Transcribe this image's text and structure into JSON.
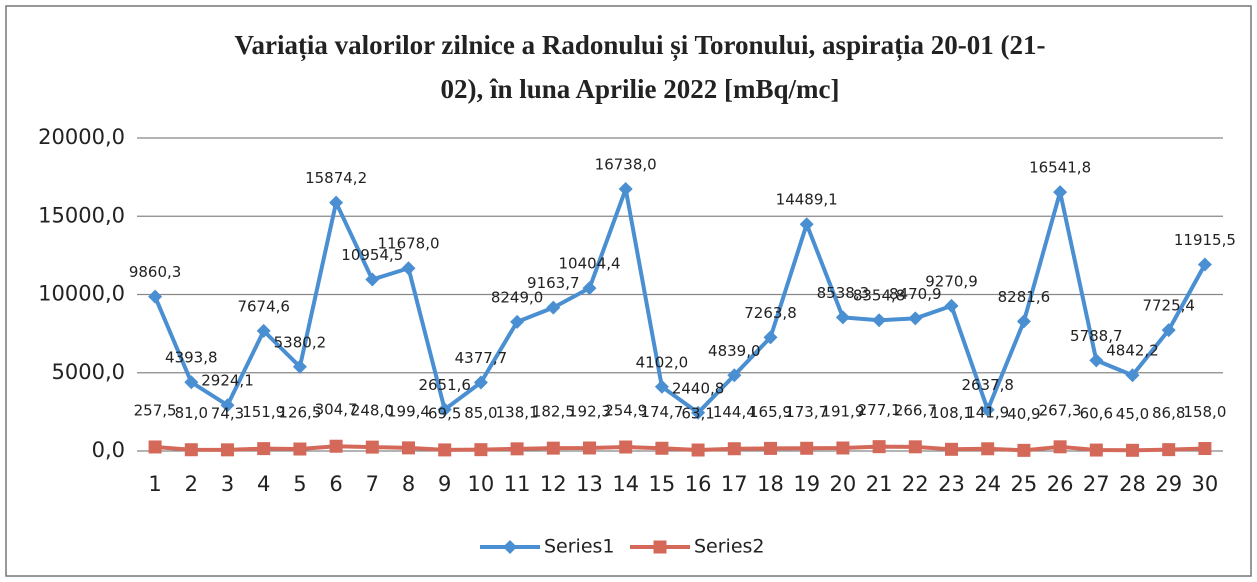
{
  "chart_data": {
    "type": "line",
    "title": [
      "Variația valorilor zilnice a Radonului și Toronului, aspirația 20-01 (21-",
      "02),  în luna Aprilie 2022 [mBq/mc]"
    ],
    "categories": [
      "1",
      "2",
      "3",
      "4",
      "5",
      "6",
      "7",
      "8",
      "9",
      "10",
      "11",
      "12",
      "13",
      "14",
      "15",
      "16",
      "17",
      "18",
      "19",
      "20",
      "21",
      "22",
      "23",
      "24",
      "25",
      "26",
      "27",
      "28",
      "29",
      "30"
    ],
    "series": [
      {
        "name": "Series1",
        "color": "#4a8fd2",
        "marker": "diamond",
        "values": [
          9860.3,
          4393.8,
          2924.1,
          7674.6,
          5380.2,
          15874.2,
          10954.5,
          11678.0,
          2651.6,
          4377.7,
          8249.0,
          9163.7,
          10404.4,
          16738.0,
          4102.0,
          2440.8,
          4839.0,
          7263.8,
          14489.1,
          8538.3,
          8354.8,
          8470.9,
          9270.9,
          2637.8,
          8281.6,
          16541.8,
          5788.7,
          4842.2,
          7725.4,
          11915.5
        ],
        "value_labels": [
          "9860,3",
          "4393,8",
          "2924,1",
          "7674,6",
          "5380,2",
          "15874,2",
          "10954,5",
          "11678,0",
          "2651,6",
          "4377,7",
          "8249,0",
          "9163,7",
          "10404,4",
          "16738,0",
          "4102,0",
          "2440,8",
          "4839,0",
          "7263,8",
          "14489,1",
          "8538,3",
          "8354,8",
          "8470,9",
          "9270,9",
          "2637,8",
          "8281,6",
          "16541,8",
          "5788,7",
          "4842,2",
          "7725,4",
          "11915,5"
        ]
      },
      {
        "name": "Series2",
        "color": "#d4695a",
        "marker": "square",
        "values": [
          257.5,
          81.0,
          74.3,
          151.9,
          126.5,
          304.7,
          248.0,
          199.4,
          69.5,
          85.0,
          138.1,
          182.5,
          192.3,
          254.9,
          174.7,
          63.1,
          144.4,
          165.9,
          173.7,
          191.9,
          277.1,
          266.7,
          108.1,
          141.9,
          40.9,
          267.3,
          60.6,
          45.0,
          86.8,
          158.0
        ],
        "value_labels": [
          "257,5",
          "81,0",
          "74,3",
          "151,9",
          "126,5",
          "304,7",
          "248,0",
          "199,4",
          "69,5",
          "85,0",
          "138,1",
          "182,5",
          "192,3",
          "254,9",
          "174,7",
          "63,1",
          "144,4",
          "165,9",
          "173,7",
          "191,9",
          "277,1",
          "266,7",
          "108,1",
          "141,9",
          "40,9",
          "267,3",
          "60,6",
          "45,0",
          "86,8",
          "158,0"
        ]
      }
    ],
    "ylim": [
      0,
      20000
    ],
    "yticks": [
      {
        "value": 0,
        "label": "0,0"
      },
      {
        "value": 5000,
        "label": "5000,0"
      },
      {
        "value": 10000,
        "label": "10000,0"
      },
      {
        "value": 15000,
        "label": "15000,0"
      },
      {
        "value": 20000,
        "label": "20000,0"
      }
    ],
    "grid": true,
    "legend": "bottom"
  }
}
